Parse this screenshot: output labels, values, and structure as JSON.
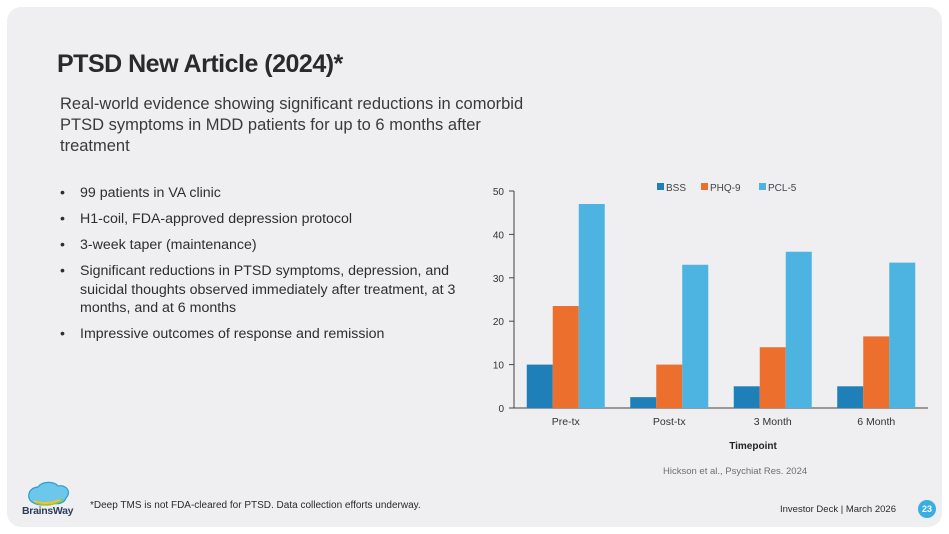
{
  "slide": {
    "title": "PTSD New Article (2024)*",
    "subtitle": "Real-world evidence showing significant reductions in comorbid PTSD symptoms in MDD patients for up to 6 months after treatment",
    "bullets": [
      "99 patients in VA clinic",
      "H1-coil, FDA-approved depression protocol",
      " 3-week taper (maintenance)",
      "Significant reductions in PTSD symptoms, depression, and suicidal thoughts observed immediately after treatment, at 3 months, and at 6 months",
      "Impressive outcomes of response and remission"
    ],
    "citation": "Hickson et al., Psychiat Res. 2024",
    "footnote": "*Deep TMS is not FDA-cleared for PTSD. Data collection efforts underway.",
    "footer_right": "Investor Deck | March 2026",
    "page_number": "23",
    "logo_text": "BrainsWay"
  },
  "colors": {
    "BSS": "#1f7fb8",
    "PHQ-9": "#ec6f2d",
    "PCL-5": "#4db3e0"
  },
  "chart_data": {
    "type": "bar",
    "title": "",
    "xlabel": "Timepoint",
    "ylabel": "",
    "categories": [
      "Pre-tx",
      "Post-tx",
      "3 Month",
      "6 Month"
    ],
    "series": [
      {
        "name": "BSS",
        "values": [
          10,
          2.5,
          5,
          5
        ]
      },
      {
        "name": "PHQ-9",
        "values": [
          23.5,
          10,
          14,
          16.5
        ]
      },
      {
        "name": "PCL-5",
        "values": [
          47,
          33,
          36,
          33.5
        ]
      }
    ],
    "ylim": [
      0,
      50
    ],
    "yticks": [
      "0",
      "10",
      "20",
      "30",
      "40",
      "50"
    ],
    "legend": "top"
  }
}
